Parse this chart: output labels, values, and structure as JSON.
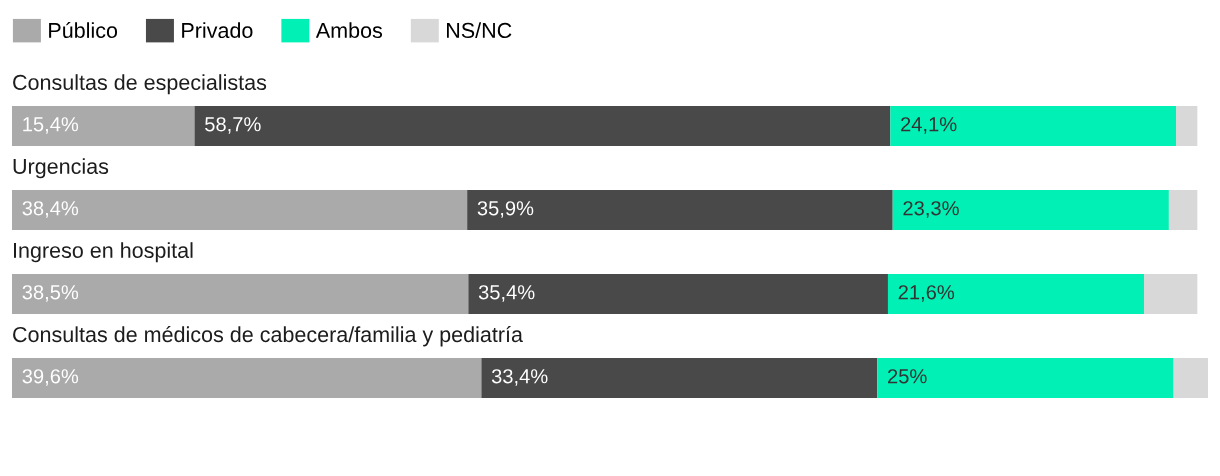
{
  "chart_data": {
    "type": "bar",
    "orientation": "horizontal",
    "stacked": true,
    "legend": "top left",
    "tick_labels": "y",
    "categories": [
      "Consultas de especialistas",
      "Urgencias",
      "Ingreso en hospital",
      "Consultas de médicos de cabecera/familia y pediatría"
    ],
    "series": [
      {
        "name": "Público",
        "color": "#aaaaaa",
        "values": [
          15.4,
          38.4,
          38.5,
          39.6
        ],
        "value_labels": [
          "15,4%",
          "38,4%",
          "38,5%",
          "39,6%"
        ]
      },
      {
        "name": "Privado",
        "color": "#494949",
        "values": [
          58.7,
          35.9,
          35.4,
          33.4
        ],
        "value_labels": [
          "58,7%",
          "35,9%",
          "35,4%",
          "33,4%"
        ]
      },
      {
        "name": "Ambos",
        "color": "#00f0b5",
        "values": [
          24.1,
          23.3,
          21.6,
          25
        ],
        "value_labels": [
          "24,1%",
          "23,3%",
          "21,6%",
          "25%"
        ]
      },
      {
        "name": "NS/NC",
        "color": "#d8d8d8",
        "values": [
          1.8,
          2.4,
          4.5,
          2.9
        ],
        "value_labels": [
          null,
          null,
          null,
          null
        ]
      }
    ]
  }
}
